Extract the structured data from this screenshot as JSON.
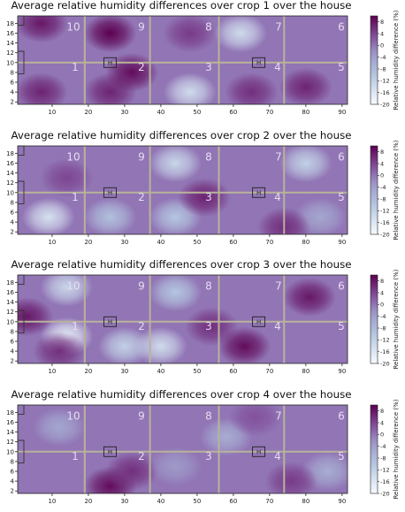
{
  "chart_data": [
    {
      "type": "heatmap",
      "title": "Average relative humidity differences over crop 1 over the house",
      "x_ticks": [
        10,
        20,
        30,
        40,
        50,
        60,
        70,
        80,
        90
      ],
      "y_ticks": [
        2,
        4,
        6,
        8,
        10,
        12,
        14,
        16,
        18
      ],
      "xlim": [
        0.5,
        91.5
      ],
      "ylim": [
        1.5,
        19.5
      ],
      "zone_labels": [
        "1",
        "2",
        "3",
        "4",
        "5",
        "6",
        "7",
        "8",
        "9",
        "10"
      ],
      "marker_label": "H",
      "colorbar": {
        "label": "Relative humidity difference (%)",
        "ticks": [
          8,
          4,
          0,
          -4,
          -8,
          -12,
          -16,
          -20
        ],
        "range": [
          -20,
          10
        ]
      },
      "blobs": [
        {
          "x": 26,
          "y": 16,
          "value": 10
        },
        {
          "x": 26,
          "y": 4,
          "value": 7
        },
        {
          "x": 32,
          "y": 8,
          "value": 9
        },
        {
          "x": 7,
          "y": 18,
          "value": 8
        },
        {
          "x": 7,
          "y": 4,
          "value": 7
        },
        {
          "x": 62,
          "y": 16,
          "value": -14
        },
        {
          "x": 48,
          "y": 4,
          "value": -14
        },
        {
          "x": 80,
          "y": 5,
          "value": 7
        },
        {
          "x": 65,
          "y": 4,
          "value": 6
        },
        {
          "x": 48,
          "y": 16,
          "value": 5
        }
      ]
    },
    {
      "type": "heatmap",
      "title": "Average relative humidity differences over crop 2 over the house",
      "x_ticks": [
        10,
        20,
        30,
        40,
        50,
        60,
        70,
        80,
        90
      ],
      "y_ticks": [
        2,
        4,
        6,
        8,
        10,
        12,
        14,
        16,
        18
      ],
      "xlim": [
        0.5,
        91.5
      ],
      "ylim": [
        1.5,
        19.5
      ],
      "zone_labels": [
        "1",
        "2",
        "3",
        "4",
        "5",
        "6",
        "7",
        "8",
        "9",
        "10"
      ],
      "marker_label": "H",
      "colorbar": {
        "label": "Relative humidity difference (%)",
        "ticks": [
          8,
          4,
          0,
          -4,
          -8,
          -12,
          -16,
          -20
        ],
        "range": [
          -20,
          10
        ]
      },
      "blobs": [
        {
          "x": 9,
          "y": 5,
          "value": -15
        },
        {
          "x": 44,
          "y": 16,
          "value": -13
        },
        {
          "x": 26,
          "y": 5,
          "value": -9
        },
        {
          "x": 44,
          "y": 5,
          "value": -10
        },
        {
          "x": 80,
          "y": 16,
          "value": -12
        },
        {
          "x": 84,
          "y": 5,
          "value": -5
        },
        {
          "x": 52,
          "y": 9,
          "value": 7
        },
        {
          "x": 74,
          "y": 3,
          "value": 6
        },
        {
          "x": 14,
          "y": 13,
          "value": 4
        }
      ]
    },
    {
      "type": "heatmap",
      "title": "Average relative humidity differences over crop 3 over the house",
      "x_ticks": [
        10,
        20,
        30,
        40,
        50,
        60,
        70,
        80,
        90
      ],
      "y_ticks": [
        2,
        4,
        6,
        8,
        10,
        12,
        14,
        16,
        18
      ],
      "xlim": [
        0.5,
        91.5
      ],
      "ylim": [
        1.5,
        19.5
      ],
      "zone_labels": [
        "1",
        "2",
        "3",
        "4",
        "5",
        "6",
        "7",
        "8",
        "9",
        "10"
      ],
      "marker_label": "H",
      "colorbar": {
        "label": "Relative humidity difference (%)",
        "ticks": [
          8,
          4,
          0,
          -4,
          -8,
          -12,
          -16,
          -20
        ],
        "range": [
          -20,
          10
        ]
      },
      "blobs": [
        {
          "x": 14,
          "y": 7,
          "value": -17
        },
        {
          "x": 14,
          "y": 17,
          "value": -13
        },
        {
          "x": 40,
          "y": 5,
          "value": -14
        },
        {
          "x": 30,
          "y": 5,
          "value": -12
        },
        {
          "x": 44,
          "y": 16,
          "value": -10
        },
        {
          "x": 3,
          "y": 11,
          "value": 8
        },
        {
          "x": 63,
          "y": 5,
          "value": 9
        },
        {
          "x": 81,
          "y": 15,
          "value": 8
        },
        {
          "x": 12,
          "y": 4,
          "value": 6
        },
        {
          "x": 54,
          "y": 9,
          "value": 6
        }
      ]
    },
    {
      "type": "heatmap",
      "title": "Average relative humidity differences over crop 4 over the house",
      "x_ticks": [
        10,
        20,
        30,
        40,
        50,
        60,
        70,
        80,
        90
      ],
      "y_ticks": [
        2,
        4,
        6,
        8,
        10,
        12,
        14,
        16,
        18
      ],
      "xlim": [
        0.5,
        91.5
      ],
      "ylim": [
        1.5,
        19.5
      ],
      "zone_labels": [
        "1",
        "2",
        "3",
        "4",
        "5",
        "6",
        "7",
        "8",
        "9",
        "10"
      ],
      "marker_label": "H",
      "colorbar": {
        "label": "Relative humidity difference (%)",
        "ticks": [
          8,
          4,
          0,
          -4,
          -8,
          -12,
          -16,
          -20
        ],
        "range": [
          -20,
          10
        ]
      },
      "blobs": [
        {
          "x": 26,
          "y": 3,
          "value": 9
        },
        {
          "x": 32,
          "y": 6,
          "value": 6
        },
        {
          "x": 58,
          "y": 13,
          "value": -6
        },
        {
          "x": 12,
          "y": 15,
          "value": -5
        },
        {
          "x": 86,
          "y": 6,
          "value": -6
        },
        {
          "x": 44,
          "y": 7,
          "value": -3
        },
        {
          "x": 76,
          "y": 4,
          "value": 5
        },
        {
          "x": 66,
          "y": 17,
          "value": 3
        }
      ]
    }
  ]
}
